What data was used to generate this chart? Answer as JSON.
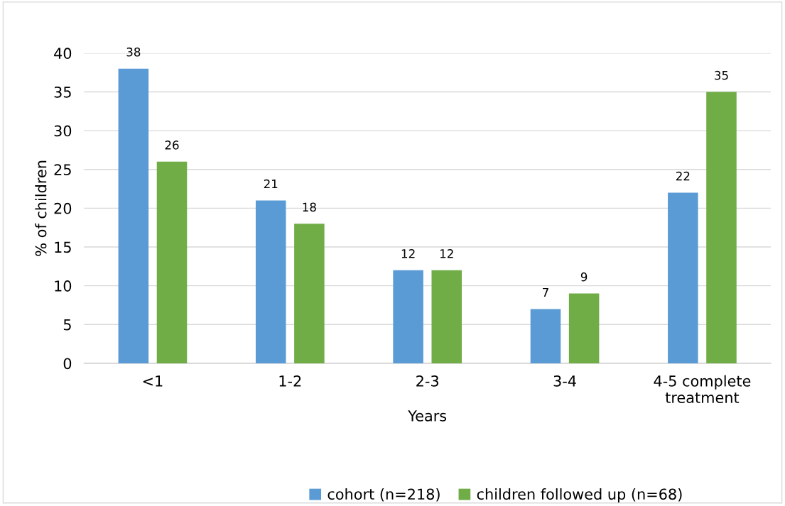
{
  "chart_data": {
    "type": "bar",
    "xlabel": "Years",
    "ylabel": "% of children",
    "categories": [
      "<1",
      "1-2",
      "2-3",
      "3-4",
      "4-5 complete\ntreatment"
    ],
    "series": [
      {
        "name": "cohort (n=218)",
        "color": "#5b9bd5",
        "values": [
          38,
          21,
          12,
          7,
          22
        ]
      },
      {
        "name": "children followed up (n=68)",
        "color": "#70ad47",
        "values": [
          26,
          18,
          12,
          9,
          35
        ]
      }
    ],
    "ylim": [
      0,
      40
    ],
    "yticks": [
      0,
      5,
      10,
      15,
      20,
      25,
      30,
      35,
      40
    ],
    "grid": "y",
    "legend": "bottom",
    "data_labels": true
  }
}
